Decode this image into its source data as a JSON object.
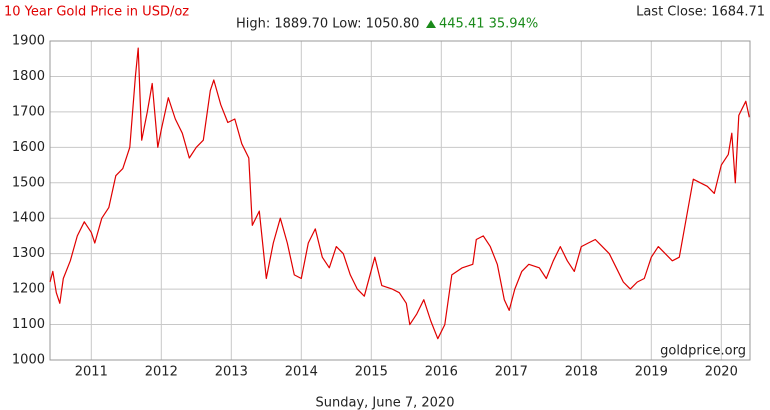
{
  "chart_data": {
    "type": "line",
    "title": "10 Year Gold Price in USD/oz",
    "subtitle": "High: 1889.70 Low: 1050.80",
    "change": "445.41 35.94%",
    "last_close": "Last Close: 1684.71",
    "watermark": "goldprice.org",
    "date": "Sunday, June 7, 2020",
    "color": "#e00000",
    "grid": true,
    "xlim": [
      2010.41,
      2020.41
    ],
    "xticks": [
      2011,
      2012,
      2013,
      2014,
      2015,
      2016,
      2017,
      2018,
      2019,
      2020
    ],
    "ylim": [
      1000,
      1900
    ],
    "yticks": [
      1000,
      1100,
      1200,
      1300,
      1400,
      1500,
      1600,
      1700,
      1800,
      1900
    ],
    "x": [
      2010.41,
      2010.45,
      2010.5,
      2010.55,
      2010.6,
      2010.7,
      2010.8,
      2010.9,
      2011.0,
      2011.05,
      2011.15,
      2011.25,
      2011.35,
      2011.45,
      2011.55,
      2011.63,
      2011.67,
      2011.72,
      2011.8,
      2011.87,
      2011.95,
      2012.0,
      2012.1,
      2012.2,
      2012.3,
      2012.4,
      2012.5,
      2012.6,
      2012.7,
      2012.75,
      2012.85,
      2012.95,
      2013.05,
      2013.15,
      2013.25,
      2013.3,
      2013.4,
      2013.5,
      2013.6,
      2013.7,
      2013.8,
      2013.9,
      2014.0,
      2014.1,
      2014.2,
      2014.3,
      2014.4,
      2014.5,
      2014.6,
      2014.7,
      2014.8,
      2014.9,
      2015.05,
      2015.15,
      2015.3,
      2015.4,
      2015.5,
      2015.55,
      2015.65,
      2015.75,
      2015.85,
      2015.95,
      2016.05,
      2016.15,
      2016.3,
      2016.45,
      2016.5,
      2016.6,
      2016.7,
      2016.8,
      2016.9,
      2016.97,
      2017.05,
      2017.15,
      2017.25,
      2017.4,
      2017.5,
      2017.6,
      2017.7,
      2017.8,
      2017.9,
      2018.0,
      2018.1,
      2018.2,
      2018.3,
      2018.4,
      2018.5,
      2018.6,
      2018.7,
      2018.8,
      2018.9,
      2019.0,
      2019.1,
      2019.2,
      2019.3,
      2019.4,
      2019.5,
      2019.6,
      2019.7,
      2019.8,
      2019.9,
      2020.0,
      2020.1,
      2020.15,
      2020.2,
      2020.25,
      2020.3,
      2020.35,
      2020.4
    ],
    "values": [
      1220,
      1250,
      1190,
      1160,
      1230,
      1280,
      1350,
      1390,
      1360,
      1330,
      1400,
      1430,
      1520,
      1540,
      1600,
      1800,
      1880,
      1620,
      1700,
      1780,
      1600,
      1650,
      1740,
      1680,
      1640,
      1570,
      1600,
      1620,
      1760,
      1790,
      1720,
      1670,
      1680,
      1610,
      1570,
      1380,
      1420,
      1230,
      1330,
      1400,
      1330,
      1240,
      1230,
      1330,
      1370,
      1290,
      1260,
      1320,
      1300,
      1240,
      1200,
      1180,
      1290,
      1210,
      1200,
      1190,
      1160,
      1100,
      1130,
      1170,
      1110,
      1060,
      1100,
      1240,
      1260,
      1270,
      1340,
      1350,
      1320,
      1270,
      1170,
      1140,
      1200,
      1250,
      1270,
      1260,
      1230,
      1280,
      1320,
      1280,
      1250,
      1320,
      1330,
      1340,
      1320,
      1300,
      1260,
      1220,
      1200,
      1220,
      1230,
      1290,
      1320,
      1300,
      1280,
      1290,
      1400,
      1510,
      1500,
      1490,
      1470,
      1550,
      1580,
      1640,
      1500,
      1690,
      1710,
      1730,
      1685
    ]
  }
}
